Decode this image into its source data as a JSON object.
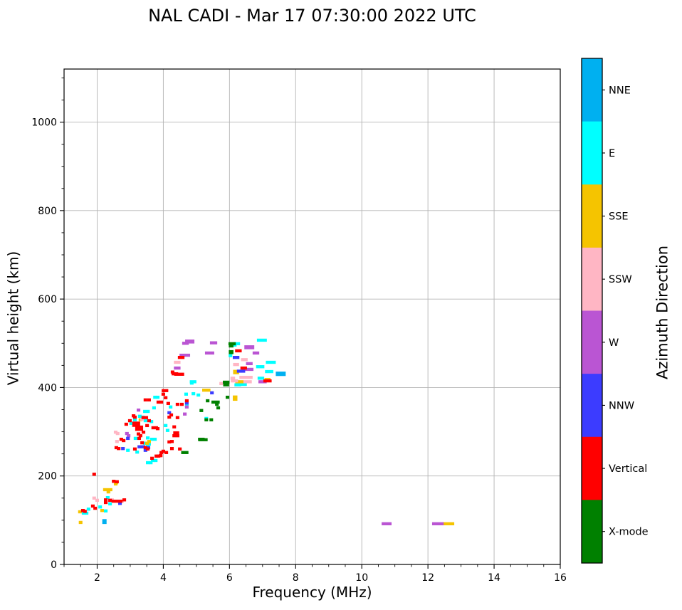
{
  "title": "NAL CADI - Mar 17 07:30:00 2022 UTC",
  "chart_data": {
    "type": "scatter",
    "title": "NAL CADI - Mar 17 07:30:00 2022 UTC",
    "xlabel": "Frequency (MHz)",
    "ylabel": "Virtual height (km)",
    "legend_title": "Azimuth Direction",
    "xlim": [
      1,
      16
    ],
    "ylim": [
      0,
      1120
    ],
    "xticks": [
      2,
      4,
      6,
      8,
      10,
      12,
      14,
      16
    ],
    "yticks": [
      0,
      200,
      400,
      600,
      800,
      1000
    ],
    "x_minor_step": 0.5,
    "y_minor_step": 50,
    "grid": true,
    "grid_color": "#b4b4b4",
    "background": "#ffffff",
    "point_note": "points are [freq_MHz, height_km, optional_width_MHz, optional_height_km]",
    "colorbar_order_top_to_bottom": [
      "NNE",
      "E",
      "SSE",
      "SSW",
      "W",
      "NNW",
      "Vertical",
      "X-mode"
    ],
    "series": [
      {
        "name": "NNE",
        "color": "#00B0F0",
        "points": [
          [
            7.55,
            431,
            0.3,
            10
          ],
          [
            2.22,
            97,
            0.13,
            11
          ]
        ]
      },
      {
        "name": "E",
        "color": "#00FFFF",
        "points": [
          [
            2.32,
            151
          ],
          [
            2.39,
            137
          ],
          [
            2.26,
            121
          ],
          [
            1.74,
            125
          ],
          [
            1.59,
            116
          ],
          [
            1.68,
            116
          ],
          [
            2.09,
            130
          ],
          [
            3.53,
            230
          ],
          [
            3.62,
            230
          ],
          [
            3.68,
            235
          ],
          [
            3.77,
            235
          ],
          [
            3.44,
            274
          ],
          [
            3.57,
            272
          ],
          [
            3.53,
            286
          ],
          [
            3.14,
            327
          ],
          [
            3.46,
            325
          ],
          [
            3.64,
            323
          ],
          [
            3.03,
            319
          ],
          [
            3.16,
            285
          ],
          [
            3.7,
            283,
            0.2
          ],
          [
            3.53,
            269
          ],
          [
            2.93,
            258
          ],
          [
            3.21,
            254
          ],
          [
            3.29,
            335
          ],
          [
            3.38,
            333
          ],
          [
            3.49,
            346,
            0.2
          ],
          [
            3.72,
            354
          ],
          [
            3.83,
            378
          ],
          [
            3.75,
            378
          ],
          [
            4.07,
            314
          ],
          [
            4.13,
            303
          ],
          [
            4.22,
            356
          ],
          [
            4.86,
            410
          ],
          [
            4.69,
            385
          ],
          [
            4.91,
            386
          ],
          [
            5.06,
            383
          ],
          [
            4.71,
            360
          ],
          [
            5.3,
            330
          ],
          [
            4.9,
            413,
            0.2
          ],
          [
            6.22,
            499,
            0.2
          ],
          [
            6.98,
            507,
            0.3
          ],
          [
            6.16,
            496
          ],
          [
            6.03,
            472
          ],
          [
            7.25,
            457,
            0.3
          ],
          [
            6.93,
            447,
            0.25
          ],
          [
            7.2,
            436,
            0.25
          ],
          [
            6.95,
            421,
            0.2
          ],
          [
            6.25,
            406,
            0.2
          ],
          [
            6.4,
            407,
            0.25
          ]
        ]
      },
      {
        "name": "SSE",
        "color": "#F5C400",
        "points": [
          [
            2.58,
            185
          ],
          [
            2.56,
            182
          ],
          [
            2.32,
            169,
            0.28
          ],
          [
            2.34,
            164
          ],
          [
            2.15,
            122
          ],
          [
            1.48,
            119
          ],
          [
            1.5,
            95
          ],
          [
            3.51,
            274
          ],
          [
            3.31,
            327
          ],
          [
            3.57,
            278
          ],
          [
            5.3,
            394,
            0.25
          ],
          [
            6.17,
            376,
            0.14,
            12
          ],
          [
            6.2,
            435,
            0.18,
            10
          ],
          [
            7.15,
            418,
            0.18
          ],
          [
            6.3,
            413,
            0.25
          ],
          [
            12.62,
            92,
            0.35
          ]
        ]
      },
      {
        "name": "SSW",
        "color": "#FFB6C4",
        "points": [
          [
            1.91,
            150
          ],
          [
            2.0,
            145
          ],
          [
            2.75,
            143
          ],
          [
            2.45,
            146
          ],
          [
            3.87,
            245
          ],
          [
            2.56,
            299
          ],
          [
            2.62,
            296
          ],
          [
            2.6,
            278
          ],
          [
            3.36,
            328
          ],
          [
            5.75,
            409
          ],
          [
            4.42,
            457,
            0.2
          ],
          [
            6.45,
            463,
            0.2
          ],
          [
            6.2,
            452,
            0.18
          ],
          [
            6.5,
            423,
            0.4
          ],
          [
            6.1,
            421,
            0.14
          ],
          [
            6.55,
            413,
            0.25
          ],
          [
            6.15,
            415,
            0.22
          ]
        ]
      },
      {
        "name": "W",
        "color": "#BA55D3",
        "points": [
          [
            3.25,
            349
          ],
          [
            2.9,
            296
          ],
          [
            2.95,
            291
          ],
          [
            4.65,
            340
          ],
          [
            4.71,
            356
          ],
          [
            4.67,
            500,
            0.2
          ],
          [
            4.8,
            504,
            0.28,
            9
          ],
          [
            5.52,
            501,
            0.22
          ],
          [
            4.65,
            473,
            0.32
          ],
          [
            4.42,
            444,
            0.2
          ],
          [
            5.4,
            478,
            0.28
          ],
          [
            6.6,
            491,
            0.3,
            9
          ],
          [
            6.8,
            478,
            0.2
          ],
          [
            6.6,
            454,
            0.2
          ],
          [
            6.55,
            441,
            0.35
          ],
          [
            7.0,
            413,
            0.25
          ],
          [
            10.75,
            92,
            0.3
          ],
          [
            12.3,
            92,
            0.35
          ]
        ]
      },
      {
        "name": "NNW",
        "color": "#3C3CFF",
        "points": [
          [
            2.69,
            138
          ],
          [
            2.93,
            285
          ],
          [
            3.46,
            258
          ],
          [
            3.55,
            264
          ],
          [
            2.78,
            262
          ],
          [
            3.34,
            266,
            0.24
          ],
          [
            4.18,
            343
          ],
          [
            4.71,
            365
          ],
          [
            5.47,
            388
          ],
          [
            6.2,
            468,
            0.2
          ],
          [
            6.35,
            437,
            0.25
          ]
        ]
      },
      {
        "name": "Vertical",
        "color": "#FF0000",
        "points": [
          [
            1.91,
            204
          ],
          [
            2.5,
            188
          ],
          [
            2.6,
            187
          ],
          [
            2.26,
            146
          ],
          [
            2.26,
            140
          ],
          [
            2.39,
            145
          ],
          [
            2.6,
            143,
            0.33
          ],
          [
            2.82,
            146
          ],
          [
            1.94,
            127
          ],
          [
            1.57,
            122
          ],
          [
            1.63,
            120
          ],
          [
            1.87,
            132
          ],
          [
            3.66,
            240
          ],
          [
            3.92,
            246
          ],
          [
            3.79,
            245
          ],
          [
            4.0,
            256
          ],
          [
            4.09,
            253
          ],
          [
            4.18,
            277
          ],
          [
            4.26,
            278
          ],
          [
            4.33,
            291
          ],
          [
            4.43,
            291
          ],
          [
            3.46,
            264
          ],
          [
            3.53,
            261
          ],
          [
            3.25,
            295
          ],
          [
            3.31,
            291
          ],
          [
            2.99,
            325
          ],
          [
            3.57,
            325
          ],
          [
            2.88,
            317
          ],
          [
            3.18,
            317,
            0.24,
            12
          ],
          [
            3.27,
            308,
            0.24,
            12
          ],
          [
            3.4,
            299
          ],
          [
            3.51,
            314
          ],
          [
            3.74,
            309,
            0.2
          ],
          [
            3.83,
            307
          ],
          [
            2.73,
            283
          ],
          [
            2.8,
            280
          ],
          [
            3.27,
            285
          ],
          [
            3.36,
            275
          ],
          [
            2.58,
            264
          ],
          [
            2.65,
            262
          ],
          [
            3.14,
            261
          ],
          [
            3.94,
            253
          ],
          [
            3.85,
            245
          ],
          [
            3.1,
            336
          ],
          [
            3.14,
            333
          ],
          [
            3.44,
            332,
            0.2
          ],
          [
            3.46,
            372
          ],
          [
            3.57,
            372
          ],
          [
            3.85,
            367
          ],
          [
            3.94,
            367
          ],
          [
            4.05,
            393,
            0.2
          ],
          [
            4.15,
            364
          ],
          [
            4.07,
            377
          ],
          [
            4.18,
            333
          ],
          [
            4.43,
            332
          ],
          [
            4.33,
            311
          ],
          [
            4.39,
            296,
            0.18,
            10
          ],
          [
            4.26,
            262
          ],
          [
            4.5,
            261
          ],
          [
            4.43,
            362
          ],
          [
            4.56,
            362
          ],
          [
            4.24,
            338
          ],
          [
            4.28,
            435
          ],
          [
            4.48,
            430,
            0.3
          ],
          [
            4.0,
            385
          ],
          [
            4.71,
            370
          ],
          [
            4.54,
            468,
            0.2
          ],
          [
            4.35,
            431,
            0.2
          ],
          [
            6.27,
            483,
            0.2
          ],
          [
            6.43,
            444,
            0.2
          ],
          [
            7.15,
            415,
            0.25
          ]
        ]
      },
      {
        "name": "X-mode",
        "color": "#008000",
        "points": [
          [
            4.65,
            253,
            0.22
          ],
          [
            5.2,
            282,
            0.28
          ],
          [
            5.9,
            407,
            0.18,
            9
          ],
          [
            5.34,
            370
          ],
          [
            5.58,
            367,
            0.25
          ],
          [
            5.62,
            362
          ],
          [
            5.66,
            354
          ],
          [
            5.94,
            378
          ],
          [
            5.15,
            348
          ],
          [
            5.3,
            327
          ],
          [
            5.45,
            327
          ],
          [
            6.08,
            499,
            0.22
          ],
          [
            6.05,
            495,
            0.14,
            9
          ],
          [
            6.05,
            480,
            0.14,
            9
          ],
          [
            5.9,
            412,
            0.2
          ],
          [
            5.15,
            283,
            0.2
          ]
        ]
      }
    ]
  }
}
